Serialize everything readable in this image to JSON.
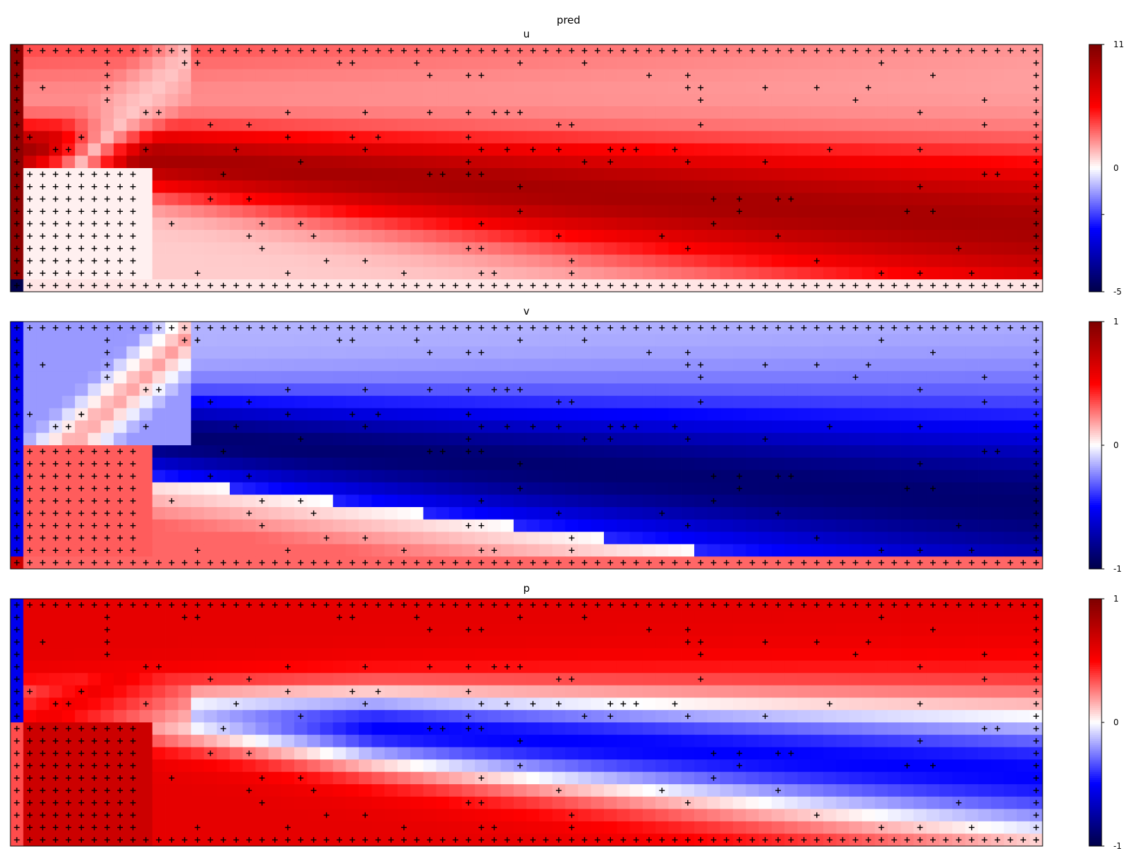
{
  "figure": {
    "suptitle": "pred"
  },
  "chart_data": [
    {
      "type": "heatmap",
      "title": "u",
      "grid": {
        "cols": 80,
        "rows": 20
      },
      "colormap": "seismic",
      "clim": [
        -5,
        11
      ],
      "colorbar_ticks": [
        "11",
        "0",
        "-5"
      ],
      "field_description": "streamwise velocity: strong positive jet core widening downstream, near-zero wake region behind obstacle",
      "markers": "+"
    },
    {
      "type": "heatmap",
      "title": "v",
      "grid": {
        "cols": 80,
        "rows": 20
      },
      "colormap": "seismic",
      "clim": [
        -1,
        1
      ],
      "colorbar_ticks": [
        "1",
        "0",
        "-1"
      ],
      "markers": "+"
    },
    {
      "type": "heatmap",
      "title": "p",
      "grid": {
        "cols": 80,
        "rows": 20
      },
      "colormap": "seismic",
      "clim": [
        -1,
        1
      ],
      "colorbar_ticks": [
        "1",
        "0",
        "-1"
      ],
      "markers": "+"
    }
  ],
  "colors": {
    "cmap_stops": [
      "#00004c",
      "#0000ff",
      "#ffffff",
      "#ff0000",
      "#800000"
    ],
    "marker": "#000000",
    "frame": "#000000"
  }
}
